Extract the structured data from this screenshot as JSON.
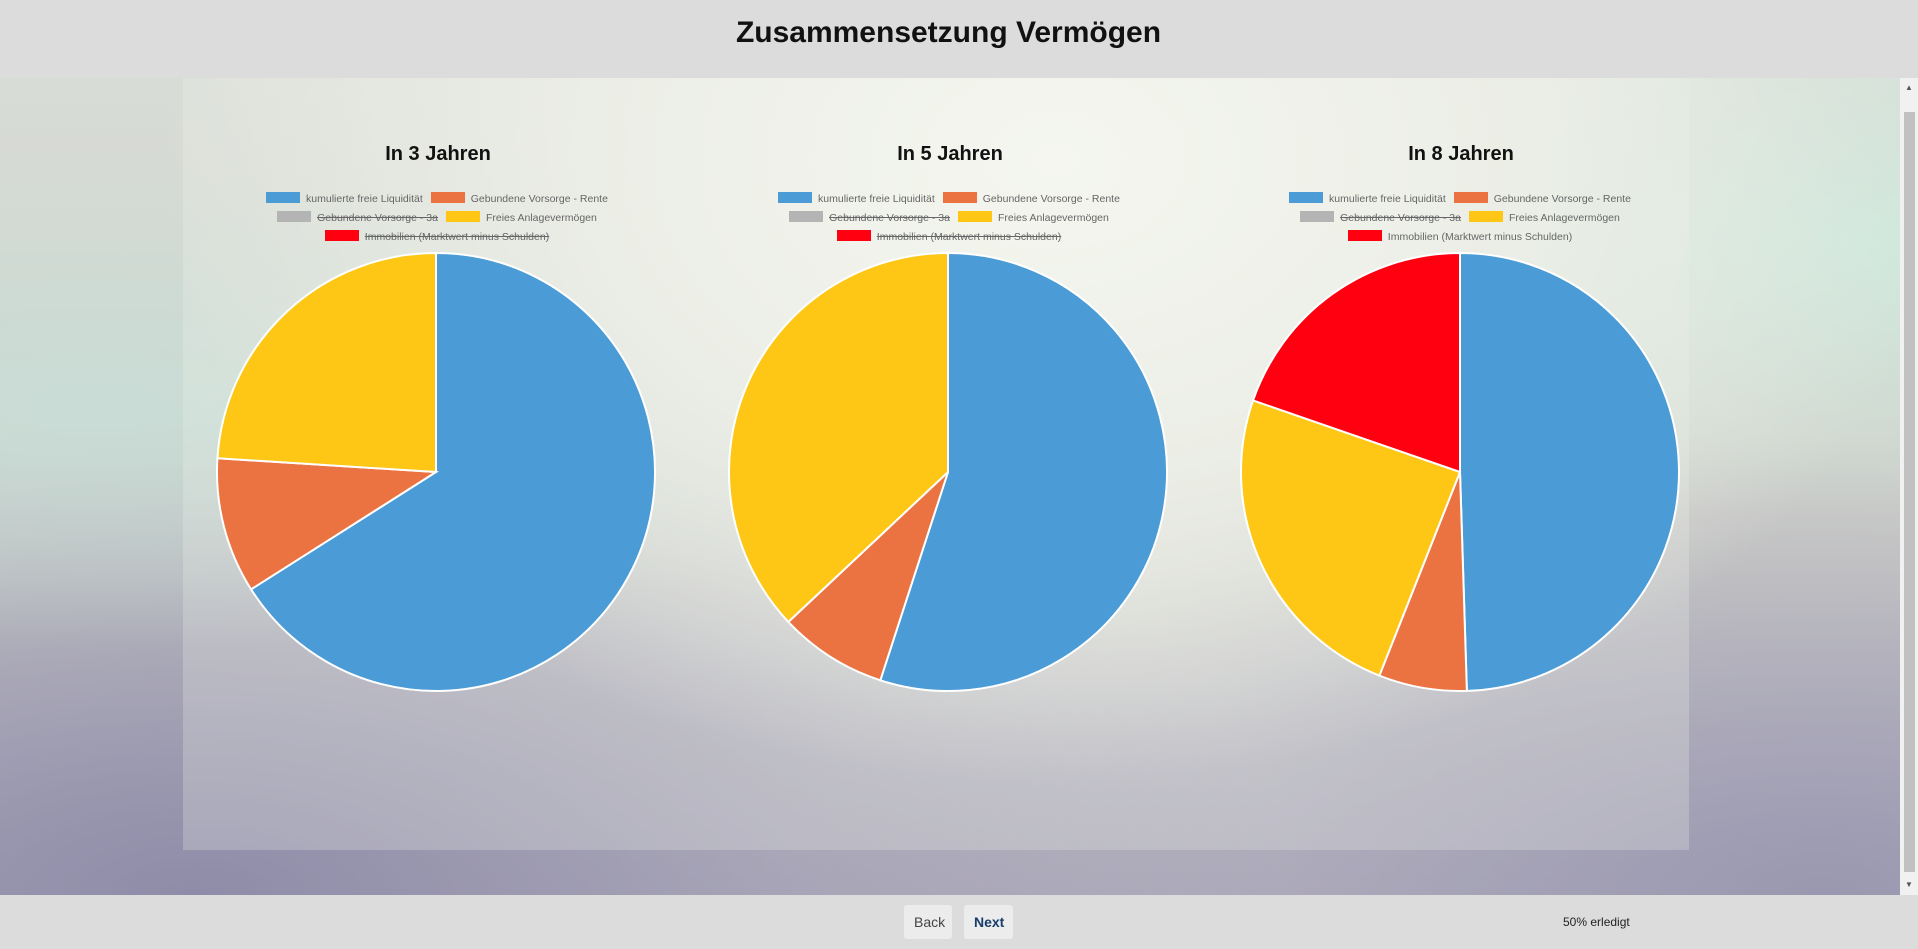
{
  "header": {
    "title": "Zusammensetzung Vermögen"
  },
  "legend": {
    "items": [
      {
        "label": "kumulierte freie Liquidität",
        "color": "#4a9bd6"
      },
      {
        "label": "Gebundene Vorsorge - Rente",
        "color": "#eb7341"
      },
      {
        "label": "Gebundene Vorsorge - 3a",
        "color": "#b4b4b4"
      },
      {
        "label": "Freies Anlagevermögen",
        "color": "#fec715"
      },
      {
        "label": "Immobilien (Marktwert minus Schulden)",
        "color": "#ff0010"
      }
    ]
  },
  "chart_data": [
    {
      "type": "pie",
      "title": "In 3 Jahren",
      "labels": [
        "kumulierte freie Liquidität",
        "Gebundene Vorsorge - Rente",
        "Gebundene Vorsorge - 3a",
        "Freies Anlagevermögen",
        "Immobilien (Marktwert minus Schulden)"
      ],
      "values": [
        66,
        10,
        0,
        24,
        0
      ],
      "hidden_legend_items": [
        "Gebundene Vorsorge - 3a",
        "Immobilien (Marktwert minus Schulden)"
      ],
      "legend_position": "top"
    },
    {
      "type": "pie",
      "title": "In 5 Jahren",
      "labels": [
        "kumulierte freie Liquidität",
        "Gebundene Vorsorge - Rente",
        "Gebundene Vorsorge - 3a",
        "Freies Anlagevermögen",
        "Immobilien (Marktwert minus Schulden)"
      ],
      "values": [
        55,
        8,
        0,
        37,
        0
      ],
      "hidden_legend_items": [
        "Gebundene Vorsorge - 3a",
        "Immobilien (Marktwert minus Schulden)"
      ],
      "legend_position": "top"
    },
    {
      "type": "pie",
      "title": "In 8 Jahren",
      "labels": [
        "kumulierte freie Liquidität",
        "Gebundene Vorsorge - Rente",
        "Gebundene Vorsorge - 3a",
        "Freies Anlagevermögen",
        "Immobilien (Marktwert minus Schulden)"
      ],
      "values": [
        49.5,
        6.5,
        0,
        24.3,
        19.7
      ],
      "hidden_legend_items": [
        "Gebundene Vorsorge - 3a"
      ],
      "legend_position": "top"
    }
  ],
  "footer": {
    "back_label": "Back",
    "next_label": "Next",
    "progress_text": "50% erledigt"
  }
}
